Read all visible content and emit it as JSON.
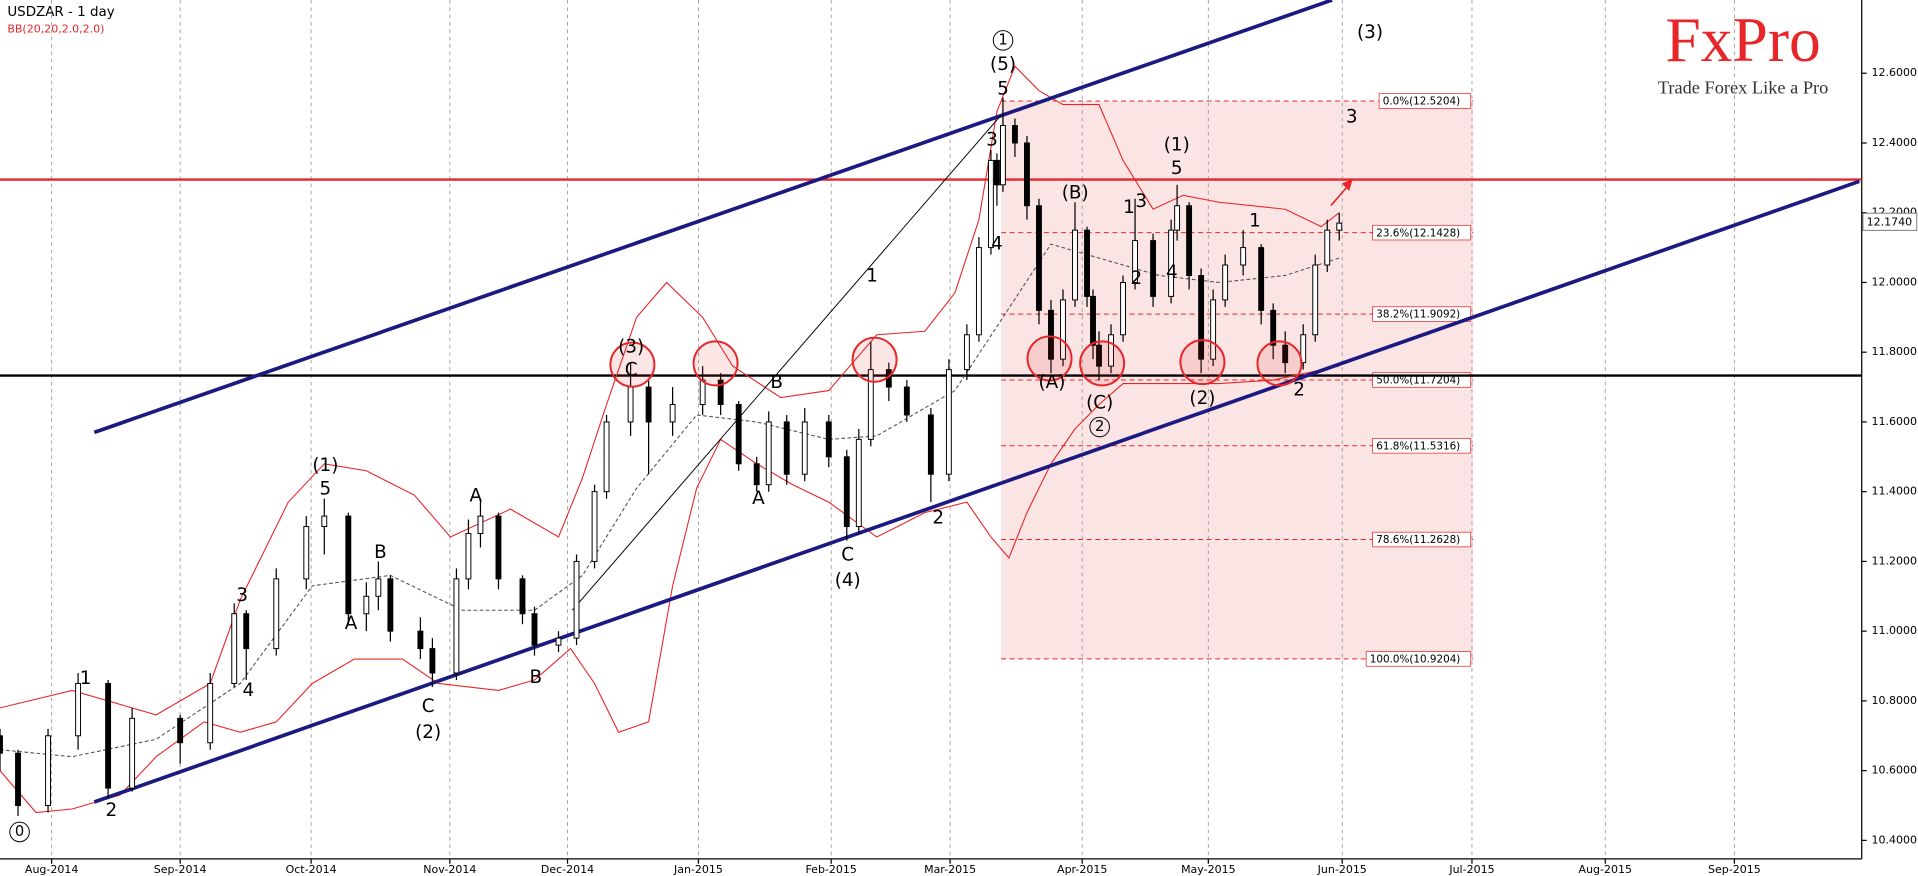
{
  "header": {
    "symbol_title": "USDZAR - 1 day",
    "indicator": "BB(20,20,2.0,2.0)"
  },
  "logo": {
    "brand": "FxPro",
    "tagline": "Trade Forex Like a Pro"
  },
  "chart_data": {
    "type": "candlestick",
    "xlim": [
      0,
      310
    ],
    "ylim": [
      10.347,
      12.81
    ],
    "xticks": [
      {
        "value": 8.6,
        "label": "Aug-2014"
      },
      {
        "value": 30,
        "label": "Sep-2014"
      },
      {
        "value": 51.8,
        "label": "Oct-2014"
      },
      {
        "value": 74.9,
        "label": "Nov-2014"
      },
      {
        "value": 94.5,
        "label": "Dec-2014"
      },
      {
        "value": 116.3,
        "label": "Jan-2015"
      },
      {
        "value": 138.4,
        "label": "Feb-2015"
      },
      {
        "value": 158.2,
        "label": "Mar-2015"
      },
      {
        "value": 180.2,
        "label": "Apr-2015"
      },
      {
        "value": 201.2,
        "label": "May-2015"
      },
      {
        "value": 223.5,
        "label": "Jun-2015"
      },
      {
        "value": 245.1,
        "label": "Jul-2015"
      },
      {
        "value": 267.3,
        "label": "Aug-2015"
      },
      {
        "value": 288.8,
        "label": "Sep-2015"
      }
    ],
    "yticks": [
      {
        "value": 10.4,
        "label": "10.4000"
      },
      {
        "value": 10.6,
        "label": "10.6000"
      },
      {
        "value": 10.8,
        "label": "10.8000"
      },
      {
        "value": 11,
        "label": "11.0000"
      },
      {
        "value": 11.2,
        "label": "11.2000"
      },
      {
        "value": 11.4,
        "label": "11.4000"
      },
      {
        "value": 11.6,
        "label": "11.6000"
      },
      {
        "value": 11.8,
        "label": "11.8000"
      },
      {
        "value": 12,
        "label": "12.0000"
      },
      {
        "value": 12.2,
        "label": "12.2000"
      },
      {
        "value": 12.4,
        "label": "12.4000"
      },
      {
        "value": 12.6,
        "label": "12.6000"
      }
    ],
    "grid_x": true,
    "grid_y": false,
    "up_color": "#ffffff",
    "down_color": "#000000",
    "candles": {
      "x": [
        0,
        3,
        8,
        13,
        18,
        22,
        30,
        35,
        39,
        41,
        46,
        51,
        54,
        58,
        61,
        63,
        65,
        70,
        72,
        76,
        78,
        80,
        83,
        87,
        89,
        93,
        96,
        99,
        101,
        105,
        108,
        112,
        117,
        120,
        123,
        126,
        128,
        131,
        134,
        138,
        141,
        143,
        145,
        148,
        151,
        155,
        158,
        161,
        163,
        165,
        166,
        167,
        169,
        171,
        173,
        175,
        177,
        179,
        181,
        182,
        183,
        185,
        187,
        189,
        192,
        195,
        196,
        198,
        200,
        202,
        204,
        207,
        210,
        212,
        214,
        217,
        219,
        221,
        223
      ],
      "open": [
        10.7,
        10.65,
        10.5,
        10.7,
        10.85,
        10.55,
        10.75,
        10.68,
        10.85,
        11.05,
        10.95,
        11.15,
        11.3,
        11.33,
        11.05,
        11.1,
        11.15,
        11.0,
        10.95,
        10.88,
        11.15,
        11.28,
        11.33,
        11.15,
        11.05,
        10.96,
        10.98,
        11.2,
        11.4,
        11.6,
        11.7,
        11.6,
        11.65,
        11.72,
        11.65,
        11.48,
        11.42,
        11.6,
        11.45,
        11.6,
        11.5,
        11.3,
        11.55,
        11.75,
        11.7,
        11.62,
        11.45,
        11.75,
        11.85,
        12.1,
        12.35,
        12.28,
        12.45,
        12.4,
        12.22,
        11.92,
        11.78,
        11.95,
        12.15,
        11.96,
        11.82,
        11.76,
        11.85,
        12.0,
        12.12,
        11.96,
        12.15,
        12.22,
        12.02,
        11.78,
        11.95,
        12.05,
        12.1,
        11.92,
        11.82,
        11.77,
        11.85,
        12.05,
        12.15
      ],
      "high": [
        10.72,
        10.66,
        10.72,
        10.88,
        10.86,
        10.78,
        10.76,
        10.88,
        11.08,
        11.06,
        11.18,
        11.33,
        11.38,
        11.34,
        11.14,
        11.2,
        11.16,
        11.04,
        10.98,
        11.18,
        11.32,
        11.38,
        11.34,
        11.16,
        11.07,
        11.0,
        11.22,
        11.42,
        11.62,
        11.77,
        11.72,
        11.7,
        11.76,
        11.74,
        11.66,
        11.5,
        11.63,
        11.62,
        11.64,
        11.62,
        11.52,
        11.58,
        11.83,
        11.77,
        11.72,
        11.64,
        11.78,
        11.88,
        12.13,
        12.38,
        12.37,
        12.53,
        12.47,
        12.42,
        12.24,
        11.95,
        11.98,
        12.23,
        12.16,
        11.98,
        11.86,
        11.88,
        12.02,
        12.24,
        12.14,
        12.18,
        12.28,
        12.23,
        12.04,
        11.98,
        12.08,
        12.15,
        12.11,
        11.94,
        11.86,
        11.88,
        12.08,
        12.18,
        12.2
      ],
      "low": [
        10.6,
        10.47,
        10.48,
        10.66,
        10.52,
        10.54,
        10.62,
        10.66,
        10.84,
        10.86,
        10.93,
        11.12,
        11.22,
        11.02,
        11.0,
        11.06,
        10.97,
        10.92,
        10.84,
        10.86,
        11.12,
        11.24,
        11.12,
        11.02,
        10.93,
        10.94,
        10.96,
        11.18,
        11.38,
        11.56,
        11.45,
        11.56,
        11.62,
        11.62,
        11.46,
        11.4,
        11.4,
        11.42,
        11.43,
        11.47,
        11.26,
        11.28,
        11.53,
        11.66,
        11.6,
        11.37,
        11.43,
        11.72,
        11.83,
        12.08,
        12.22,
        12.26,
        12.36,
        12.18,
        11.88,
        11.74,
        11.76,
        11.93,
        11.93,
        11.78,
        11.72,
        11.74,
        11.83,
        11.98,
        11.93,
        11.94,
        12.12,
        11.98,
        11.74,
        11.76,
        11.93,
        12.02,
        11.88,
        11.78,
        11.74,
        11.75,
        11.83,
        12.03,
        12.12
      ],
      "close": [
        10.65,
        10.5,
        10.7,
        10.85,
        10.55,
        10.75,
        10.68,
        10.85,
        11.05,
        10.95,
        11.15,
        11.3,
        11.33,
        11.05,
        11.1,
        11.15,
        11.0,
        10.95,
        10.88,
        11.15,
        11.28,
        11.33,
        11.15,
        11.05,
        10.96,
        10.98,
        11.2,
        11.4,
        11.6,
        11.7,
        11.6,
        11.65,
        11.72,
        11.65,
        11.48,
        11.42,
        11.6,
        11.45,
        11.6,
        11.5,
        11.3,
        11.55,
        11.75,
        11.7,
        11.62,
        11.45,
        11.75,
        11.85,
        12.1,
        12.35,
        12.28,
        12.45,
        12.4,
        12.22,
        11.92,
        11.78,
        11.95,
        12.15,
        11.96,
        11.82,
        11.76,
        11.85,
        12.0,
        12.12,
        11.96,
        12.15,
        12.22,
        12.02,
        11.78,
        11.95,
        12.05,
        12.1,
        11.92,
        11.82,
        11.77,
        11.85,
        12.05,
        12.15,
        12.17
      ]
    },
    "bands": [
      {
        "color": "#e8262a",
        "dash": false,
        "x": [
          0,
          12,
          26,
          35,
          40,
          48,
          54,
          61,
          69,
          75,
          85,
          93,
          97,
          101,
          106,
          111,
          117,
          122,
          130,
          138,
          146,
          154,
          159,
          163,
          166,
          169,
          173,
          177,
          183,
          187,
          192,
          197,
          203,
          214,
          220,
          223
        ],
        "values": [
          10.78,
          10.83,
          10.76,
          10.85,
          11.09,
          11.37,
          11.48,
          11.46,
          11.39,
          11.27,
          11.35,
          11.27,
          11.44,
          11.65,
          11.9,
          12.0,
          11.9,
          11.76,
          11.67,
          11.69,
          11.85,
          11.86,
          11.97,
          12.18,
          12.49,
          12.62,
          12.55,
          12.51,
          12.51,
          12.35,
          12.21,
          12.25,
          12.23,
          12.21,
          12.16,
          12.2
        ]
      },
      {
        "color": "#e8262a",
        "dash": false,
        "x": [
          0,
          6,
          12,
          20,
          26,
          34,
          40,
          46,
          52,
          59,
          67,
          73,
          83,
          89,
          95,
          99,
          103,
          108,
          112,
          116,
          120,
          126,
          132,
          138,
          146,
          154,
          161,
          165,
          168,
          171,
          175,
          179,
          183,
          187,
          193,
          203,
          212,
          223
        ],
        "values": [
          10.6,
          10.48,
          10.49,
          10.53,
          10.64,
          10.74,
          10.71,
          10.74,
          10.85,
          10.92,
          10.92,
          10.85,
          10.83,
          10.86,
          10.95,
          10.85,
          10.71,
          10.74,
          11.13,
          11.41,
          11.55,
          11.48,
          11.42,
          11.37,
          11.27,
          11.34,
          11.37,
          11.27,
          11.21,
          11.34,
          11.48,
          11.58,
          11.65,
          11.71,
          11.71,
          11.71,
          11.72,
          11.76
        ]
      },
      {
        "color": "#555555",
        "dash": true,
        "x": [
          0,
          12,
          26,
          40,
          52,
          65,
          77,
          89,
          97,
          106,
          116,
          126,
          138,
          146,
          159,
          167,
          175,
          183,
          193,
          203,
          214,
          223
        ],
        "values": [
          10.66,
          10.64,
          10.69,
          10.85,
          11.13,
          11.16,
          11.06,
          11.06,
          11.16,
          11.41,
          11.62,
          11.6,
          11.55,
          11.56,
          11.69,
          11.9,
          12.11,
          12.07,
          12.02,
          12.0,
          12.02,
          12.07
        ]
      }
    ],
    "trendlines": [
      {
        "color": "#1a1a80",
        "width": 3,
        "x": [
          15.7,
          221.8
        ],
        "values": [
          11.57,
          12.81
        ]
      },
      {
        "color": "#1a1a80",
        "width": 3,
        "x": [
          15.7,
          309.6
        ],
        "values": [
          10.51,
          12.29
        ]
      },
      {
        "color": "#000000",
        "width": 0.8,
        "x": [
          95.3,
          166.7
        ],
        "values": [
          11.06,
          12.48
        ]
      }
    ],
    "levels": [
      {
        "value": 12.295,
        "color": "#e8262a"
      },
      {
        "value": 11.733,
        "color": "#000000"
      }
    ],
    "last_price": {
      "value": 12.174,
      "label": "12.1740"
    },
    "fibonacci": {
      "color": "#e8262a",
      "x": [
        166.7,
        245.3
      ],
      "levels": [
        {
          "value": 12.5204,
          "label": "0.0%(12.5204)"
        },
        {
          "value": 12.1428,
          "label": "23.6%(12.1428)"
        },
        {
          "value": 11.9092,
          "label": "38.2%(11.9092)"
        },
        {
          "value": 11.7204,
          "label": "50.0%(11.7204)"
        },
        {
          "value": 11.5316,
          "label": "61.8%(11.5316)"
        },
        {
          "value": 11.2628,
          "label": "78.6%(11.2628)"
        },
        {
          "value": 10.9204,
          "label": "100.0%(10.9204)"
        }
      ]
    },
    "annotations": [
      "0",
      "1",
      "2",
      "3",
      "4",
      "(1)",
      "5",
      "A",
      "B",
      "C",
      "(2)",
      "A",
      "B",
      "C",
      "(3)",
      "B",
      "A",
      "C",
      "(4)",
      "1",
      "2",
      "1",
      "(5)",
      "5",
      "3",
      "4",
      "(A)",
      "(B)",
      "(C)",
      "2",
      "1",
      "3",
      "2",
      "4",
      "(1)",
      "5",
      "(2)",
      "1",
      "2",
      "3",
      "(3)"
    ]
  }
}
